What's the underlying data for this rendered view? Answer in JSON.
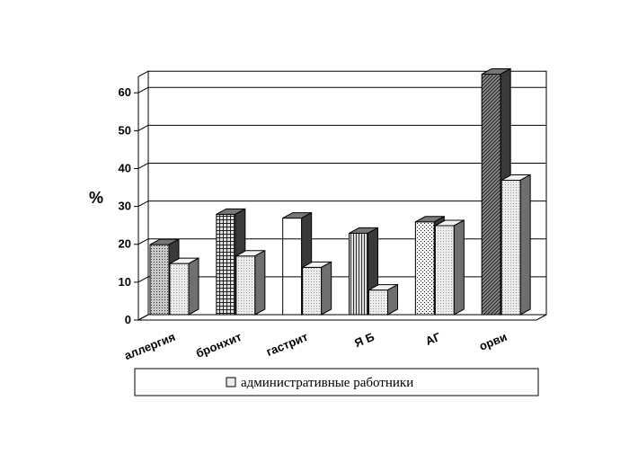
{
  "chart_data": {
    "type": "bar",
    "ylabel": "%",
    "ylim": [
      0,
      65
    ],
    "yticks": [
      0,
      10,
      20,
      30,
      40,
      50,
      60
    ],
    "grid": true,
    "legend_position": "bottom",
    "categories": [
      "аллергия",
      "бронхит",
      "гастрит",
      "Я Б",
      "АГ",
      "орви"
    ],
    "series": [
      {
        "values": [
          18.5,
          26.5,
          25.5,
          21.5,
          24.5,
          63.5
        ],
        "category_fills": [
          "dots",
          "grid",
          "solid",
          "vlines",
          "dense-dots",
          "diagonal"
        ]
      },
      {
        "name": "административные работники",
        "values": [
          13.5,
          15.5,
          12.5,
          6.5,
          23.5,
          35.5
        ],
        "fill": "light-dots"
      }
    ],
    "colors": {
      "dark": "#6f6f6f",
      "light": "#e8e8e8",
      "grid": "#000000"
    }
  }
}
